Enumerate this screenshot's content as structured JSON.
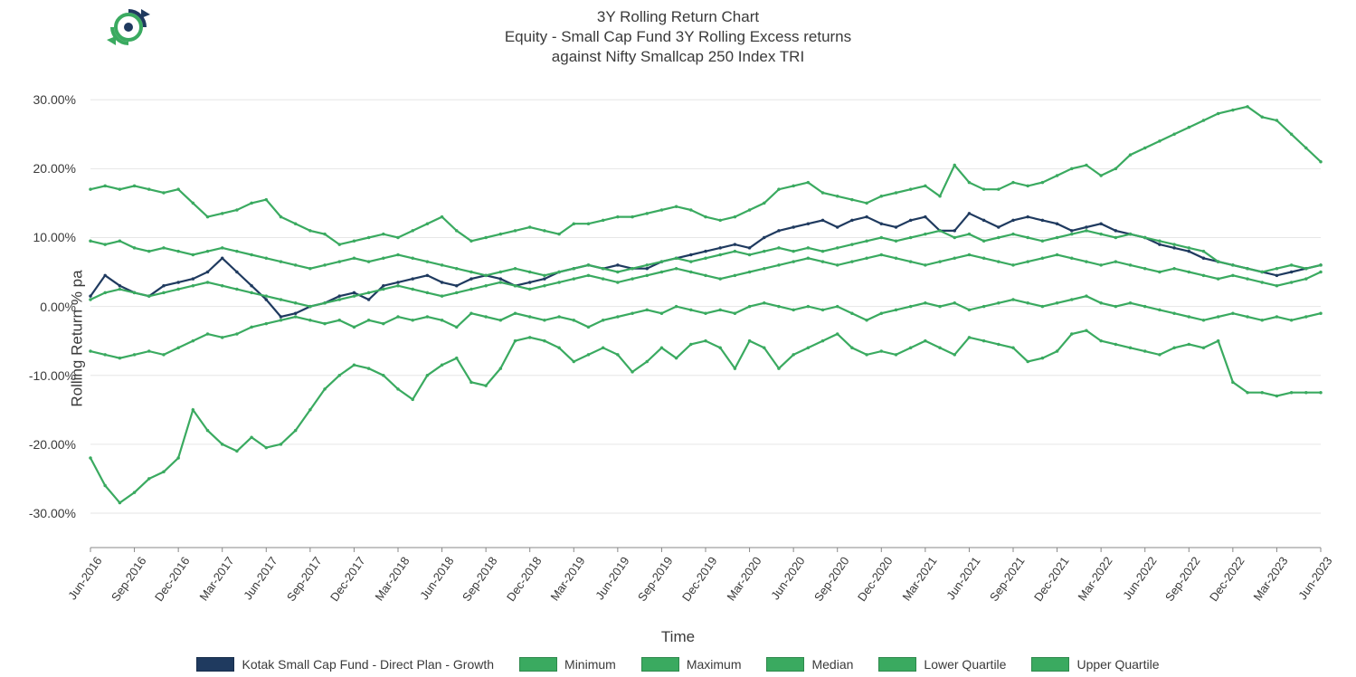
{
  "title_line1": "3Y Rolling Return Chart",
  "title_line2": "Equity - Small Cap Fund 3Y Rolling Excess returns",
  "title_line3": "against Nifty Smallcap 250 Index TRI",
  "y_axis_label": "Rolling Return % pa",
  "x_axis_label": "Time",
  "chart": {
    "type": "line",
    "ylim": [
      -35,
      32
    ],
    "ytick_step": 10,
    "y_ticks": [
      -30,
      -20,
      -10,
      0,
      10,
      20,
      30
    ],
    "y_tick_labels": [
      "-30.00%",
      "-20.00%",
      "-10.00%",
      "0.00%",
      "10.00%",
      "20.00%",
      "30.00%"
    ],
    "x_labels": [
      "Jun-2016",
      "Sep-2016",
      "Dec-2016",
      "Mar-2017",
      "Jun-2017",
      "Sep-2017",
      "Dec-2017",
      "Mar-2018",
      "Jun-2018",
      "Sep-2018",
      "Dec-2018",
      "Mar-2019",
      "Jun-2019",
      "Sep-2019",
      "Dec-2019",
      "Mar-2020",
      "Jun-2020",
      "Sep-2020",
      "Dec-2020",
      "Mar-2021",
      "Jun-2021",
      "Sep-2021",
      "Dec-2021",
      "Mar-2022",
      "Jun-2022",
      "Sep-2022",
      "Dec-2022",
      "Mar-2023",
      "Jun-2023"
    ],
    "background_color": "#ffffff",
    "grid_color": "#e6e6e6",
    "axis_color": "#888888",
    "title_fontsize": 17,
    "label_fontsize": 17,
    "tick_fontsize": 14,
    "line_width": 2.2,
    "marker": "circle",
    "marker_size": 3.5,
    "series": [
      {
        "name": "Kotak Small Cap Fund - Direct Plan - Growth",
        "color": "#1f3a5f",
        "values": [
          1.5,
          4.5,
          3.0,
          2.0,
          1.5,
          3.0,
          3.5,
          4.0,
          5.0,
          7.0,
          5.0,
          3.0,
          1.0,
          -1.5,
          -1.0,
          0.0,
          0.5,
          1.5,
          2.0,
          1.0,
          3.0,
          3.5,
          4.0,
          4.5,
          3.5,
          3.0,
          4.0,
          4.5,
          4.0,
          3.0,
          3.5,
          4.0,
          5.0,
          5.5,
          6.0,
          5.5,
          6.0,
          5.5,
          5.5,
          6.5,
          7.0,
          7.5,
          8.0,
          8.5,
          9.0,
          8.5,
          10.0,
          11.0,
          11.5,
          12.0,
          12.5,
          11.5,
          12.5,
          13.0,
          12.0,
          11.5,
          12.5,
          13.0,
          11.0,
          11.0,
          13.5,
          12.5,
          11.5,
          12.5,
          13.0,
          12.5,
          12.0,
          11.0,
          11.5,
          12.0,
          11.0,
          10.5,
          10.0,
          9.0,
          8.5,
          8.0,
          7.0,
          6.5,
          6.0,
          5.5,
          5.0,
          4.5,
          5.0,
          5.5,
          6.0
        ]
      },
      {
        "name": "Minimum",
        "color": "#3aaa60",
        "values": [
          -22,
          -26,
          -28.5,
          -27,
          -25,
          -24,
          -22,
          -15,
          -18,
          -20,
          -21,
          -19,
          -20.5,
          -20,
          -18,
          -15,
          -12,
          -10,
          -8.5,
          -9,
          -10,
          -12,
          -13.5,
          -10,
          -8.5,
          -7.5,
          -11,
          -11.5,
          -9,
          -5,
          -4.5,
          -5,
          -6,
          -8,
          -7,
          -6,
          -7,
          -9.5,
          -8,
          -6,
          -7.5,
          -5.5,
          -5,
          -6,
          -9,
          -5,
          -6,
          -9,
          -7,
          -6,
          -5,
          -4,
          -6,
          -7,
          -6.5,
          -7,
          -6,
          -5,
          -6,
          -7,
          -4.5,
          -5,
          -5.5,
          -6,
          -8,
          -7.5,
          -6.5,
          -4,
          -3.5,
          -5,
          -5.5,
          -6,
          -6.5,
          -7,
          -6,
          -5.5,
          -6,
          -5,
          -11,
          -12.5,
          -12.5,
          -13,
          -12.5,
          -12.5,
          -12.5
        ]
      },
      {
        "name": "Maximum",
        "color": "#3aaa60",
        "values": [
          17,
          17.5,
          17,
          17.5,
          17,
          16.5,
          17,
          15,
          13,
          13.5,
          14,
          15,
          15.5,
          13,
          12,
          11,
          10.5,
          9,
          9.5,
          10,
          10.5,
          10,
          11,
          12,
          13,
          11,
          9.5,
          10,
          10.5,
          11,
          11.5,
          11,
          10.5,
          12,
          12,
          12.5,
          13,
          13,
          13.5,
          14,
          14.5,
          14,
          13,
          12.5,
          13,
          14,
          15,
          17,
          17.5,
          18,
          16.5,
          16,
          15.5,
          15,
          16,
          16.5,
          17,
          17.5,
          16,
          20.5,
          18,
          17,
          17,
          18,
          17.5,
          18,
          19,
          20,
          20.5,
          19,
          20,
          22,
          23,
          24,
          25,
          26,
          27,
          28,
          28.5,
          29,
          27.5,
          27,
          25,
          23,
          21
        ]
      },
      {
        "name": "Median",
        "color": "#3aaa60",
        "values": [
          1,
          2,
          2.5,
          2,
          1.5,
          2,
          2.5,
          3,
          3.5,
          3,
          2.5,
          2,
          1.5,
          1,
          0.5,
          0,
          0.5,
          1,
          1.5,
          2,
          2.5,
          3,
          2.5,
          2,
          1.5,
          2,
          2.5,
          3,
          3.5,
          3,
          2.5,
          3,
          3.5,
          4,
          4.5,
          4,
          3.5,
          4,
          4.5,
          5,
          5.5,
          5,
          4.5,
          4,
          4.5,
          5,
          5.5,
          6,
          6.5,
          7,
          6.5,
          6,
          6.5,
          7,
          7.5,
          7,
          6.5,
          6,
          6.5,
          7,
          7.5,
          7,
          6.5,
          6,
          6.5,
          7,
          7.5,
          7,
          6.5,
          6,
          6.5,
          6,
          5.5,
          5,
          5.5,
          5,
          4.5,
          4,
          4.5,
          4,
          3.5,
          3,
          3.5,
          4,
          5
        ]
      },
      {
        "name": "Lower Quartile",
        "color": "#3aaa60",
        "values": [
          -6.5,
          -7,
          -7.5,
          -7,
          -6.5,
          -7,
          -6,
          -5,
          -4,
          -4.5,
          -4,
          -3,
          -2.5,
          -2,
          -1.5,
          -2,
          -2.5,
          -2,
          -3,
          -2,
          -2.5,
          -1.5,
          -2,
          -1.5,
          -2,
          -3,
          -1,
          -1.5,
          -2,
          -1,
          -1.5,
          -2,
          -1.5,
          -2,
          -3,
          -2,
          -1.5,
          -1,
          -0.5,
          -1,
          0,
          -0.5,
          -1,
          -0.5,
          -1,
          0,
          0.5,
          0,
          -0.5,
          0,
          -0.5,
          0,
          -1,
          -2,
          -1,
          -0.5,
          0,
          0.5,
          0,
          0.5,
          -0.5,
          0,
          0.5,
          1,
          0.5,
          0,
          0.5,
          1,
          1.5,
          0.5,
          0,
          0.5,
          0,
          -0.5,
          -1,
          -1.5,
          -2,
          -1.5,
          -1,
          -1.5,
          -2,
          -1.5,
          -2,
          -1.5,
          -1
        ]
      },
      {
        "name": "Upper Quartile",
        "color": "#3aaa60",
        "values": [
          9.5,
          9,
          9.5,
          8.5,
          8,
          8.5,
          8,
          7.5,
          8,
          8.5,
          8,
          7.5,
          7,
          6.5,
          6,
          5.5,
          6,
          6.5,
          7,
          6.5,
          7,
          7.5,
          7,
          6.5,
          6,
          5.5,
          5,
          4.5,
          5,
          5.5,
          5,
          4.5,
          5,
          5.5,
          6,
          5.5,
          5,
          5.5,
          6,
          6.5,
          7,
          6.5,
          7,
          7.5,
          8,
          7.5,
          8,
          8.5,
          8,
          8.5,
          8,
          8.5,
          9,
          9.5,
          10,
          9.5,
          10,
          10.5,
          11,
          10,
          10.5,
          9.5,
          10,
          10.5,
          10,
          9.5,
          10,
          10.5,
          11,
          10.5,
          10,
          10.5,
          10,
          9.5,
          9,
          8.5,
          8,
          6.5,
          6,
          5.5,
          5,
          5.5,
          6,
          5.5,
          6
        ]
      }
    ]
  },
  "legend": {
    "items": [
      {
        "label": "Kotak Small Cap Fund - Direct Plan - Growth",
        "color": "#1f3a5f"
      },
      {
        "label": "Minimum",
        "color": "#3aaa60"
      },
      {
        "label": "Maximum",
        "color": "#3aaa60"
      },
      {
        "label": "Median",
        "color": "#3aaa60"
      },
      {
        "label": "Lower Quartile",
        "color": "#3aaa60"
      },
      {
        "label": "Upper Quartile",
        "color": "#3aaa60"
      }
    ]
  },
  "logo": {
    "ring_color": "#3aaa60",
    "arrow_color": "#1f3a5f"
  }
}
